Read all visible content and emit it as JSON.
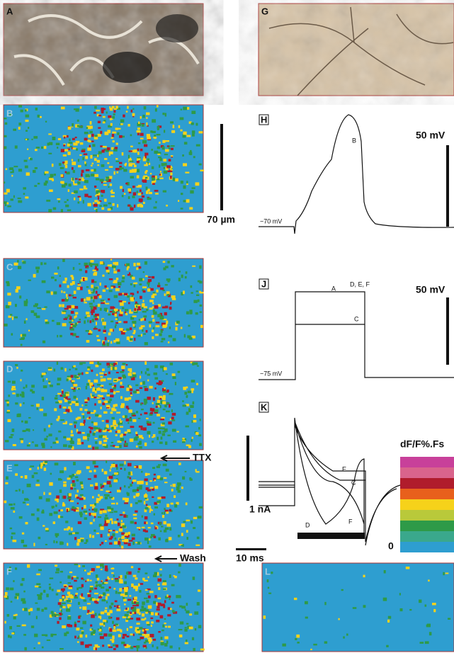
{
  "panels": {
    "A": "A",
    "B": "B",
    "C": "C",
    "D": "D",
    "E": "E",
    "F": "F",
    "G": "G",
    "H": "H",
    "J": "J",
    "K": "K",
    "L": "L"
  },
  "scale_bars": {
    "length": "70 µm",
    "voltage_h": "50 mV",
    "voltage_j": "50 mV",
    "current": "1 nA",
    "time": "10 ms"
  },
  "traces": {
    "h_rest": "−70 mV",
    "h_label": "B",
    "j_rest": "−75 mV",
    "j_label_a": "A",
    "j_label_def": "D, E, F",
    "j_label_c": "C",
    "k_label_e": "E",
    "k_label_c": "C",
    "k_label_d": "D",
    "k_label_f": "F"
  },
  "arrows": {
    "ttx": "TTX",
    "wash": "Wash"
  },
  "color_scale": {
    "title": "dF/F%.Fs",
    "zero": "0"
  }
}
